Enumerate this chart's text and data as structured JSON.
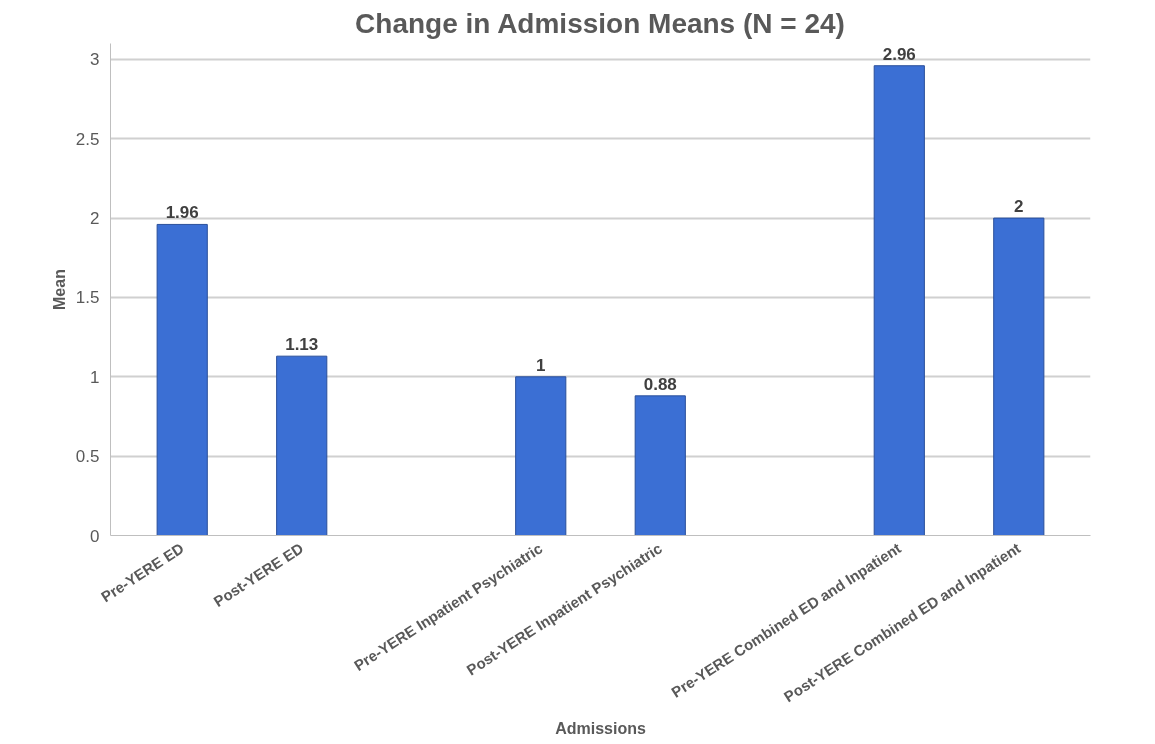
{
  "chart_data": {
    "type": "bar",
    "title": "Change in Admission Means (N = 24)",
    "xlabel": "Admissions",
    "ylabel": "Mean",
    "categories": [
      "Pre-YERE ED",
      "Post-YERE ED",
      null,
      "Pre-YERE Inpatient Psychiatric",
      "Post-YERE Inpatient Psychiatric",
      null,
      "Pre-YERE Combined ED and Inpatient",
      "Post-YERE Combined ED and Inpatient"
    ],
    "values": [
      1.96,
      1.13,
      null,
      1,
      0.88,
      null,
      2.96,
      2
    ],
    "color": "#3b6fd4",
    "ylim": [
      0,
      3.1
    ],
    "yticks": [
      0,
      0.5,
      1,
      1.5,
      2,
      2.5,
      3
    ],
    "grid": "y",
    "data_labels": true
  }
}
